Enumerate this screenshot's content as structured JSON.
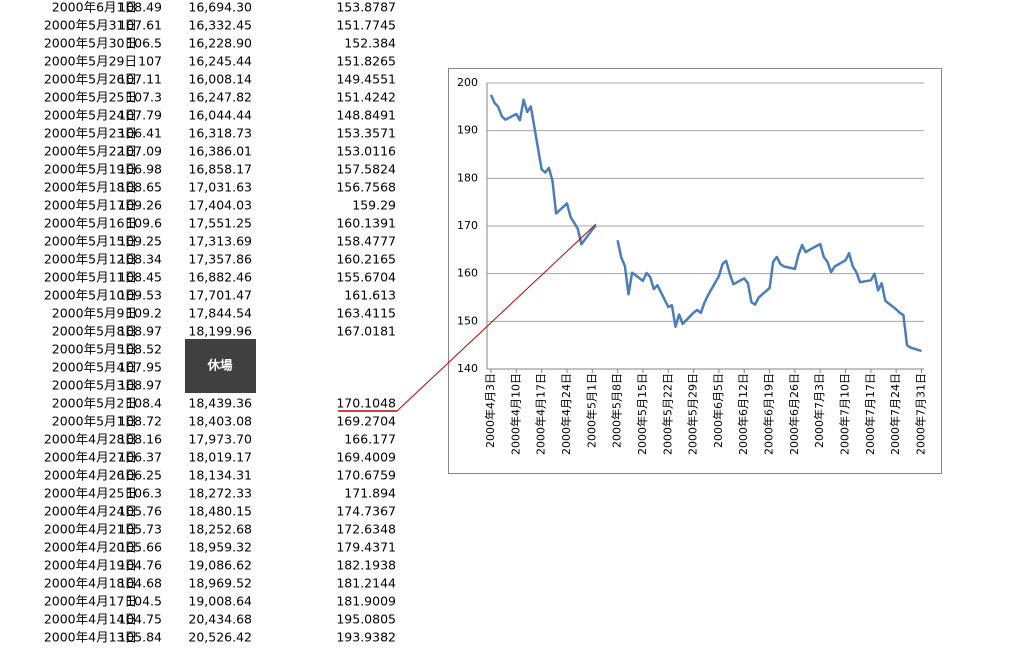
{
  "table": {
    "rows": [
      [
        "2000年6月1日",
        "108.49",
        "16,694.30",
        "153.8787"
      ],
      [
        "2000年5月31日",
        "107.61",
        "16,332.45",
        "151.7745"
      ],
      [
        "2000年5月30日",
        "106.5",
        "16,228.90",
        "152.384"
      ],
      [
        "2000年5月29日",
        "107",
        "16,245.44",
        "151.8265"
      ],
      [
        "2000年5月26日",
        "107.11",
        "16,008.14",
        "149.4551"
      ],
      [
        "2000年5月25日",
        "107.3",
        "16,247.82",
        "151.4242"
      ],
      [
        "2000年5月24日",
        "107.79",
        "16,044.44",
        "148.8491"
      ],
      [
        "2000年5月23日",
        "106.41",
        "16,318.73",
        "153.3571"
      ],
      [
        "2000年5月22日",
        "107.09",
        "16,386.01",
        "153.0116"
      ],
      [
        "2000年5月19日",
        "106.98",
        "16,858.17",
        "157.5824"
      ],
      [
        "2000年5月18日",
        "108.65",
        "17,031.63",
        "156.7568"
      ],
      [
        "2000年5月17日",
        "109.26",
        "17,404.03",
        "159.29"
      ],
      [
        "2000年5月16日",
        "109.6",
        "17,551.25",
        "160.1391"
      ],
      [
        "2000年5月15日",
        "109.25",
        "17,313.69",
        "158.4777"
      ],
      [
        "2000年5月12日",
        "108.34",
        "17,357.86",
        "160.2165"
      ],
      [
        "2000年5月11日",
        "108.45",
        "16,882.46",
        "155.6704"
      ],
      [
        "2000年5月10日",
        "109.53",
        "17,701.47",
        "161.613"
      ],
      [
        "2000年5月9日",
        "109.2",
        "17,844.54",
        "163.4115"
      ],
      [
        "2000年5月8日",
        "108.97",
        "18,199.96",
        "167.0181"
      ],
      [
        "2000年5月5日",
        "108.52"
      ],
      [
        "2000年5月4日",
        "107.95"
      ],
      [
        "2000年5月3日",
        "108.97"
      ],
      [
        "2000年5月2日",
        "108.4",
        "18,439.36",
        "170.1048"
      ],
      [
        "2000年5月1日",
        "108.72",
        "18,403.08",
        "169.2704"
      ],
      [
        "2000年4月28日",
        "108.16",
        "17,973.70",
        "166.177"
      ],
      [
        "2000年4月27日",
        "106.37",
        "18,019.17",
        "169.4009"
      ],
      [
        "2000年4月26日",
        "106.25",
        "18,134.31",
        "170.6759"
      ],
      [
        "2000年4月25日",
        "106.3",
        "18,272.33",
        "171.894"
      ],
      [
        "2000年4月24日",
        "105.76",
        "18,480.15",
        "174.7367"
      ],
      [
        "2000年4月21日",
        "105.73",
        "18,252.68",
        "172.6348"
      ],
      [
        "2000年4月20日",
        "105.66",
        "18,959.32",
        "179.4371"
      ],
      [
        "2000年4月19日",
        "104.76",
        "19,086.62",
        "182.1938"
      ],
      [
        "2000年4月18日",
        "104.68",
        "18,969.52",
        "181.2144"
      ],
      [
        "2000年4月17日",
        "104.5",
        "19,008.64",
        "181.9009"
      ],
      [
        "2000年4月14日",
        "104.75",
        "20,434.68",
        "195.0805"
      ],
      [
        "2000年4月13日",
        "105.84",
        "20,526.42",
        "193.9382"
      ]
    ],
    "closed_label": "休場"
  },
  "chart_data": {
    "type": "line",
    "x": [
      "2000年4月3日",
      "2000年4月4日",
      "2000年4月5日",
      "2000年4月6日",
      "2000年4月7日",
      "2000年4月10日",
      "2000年4月11日",
      "2000年4月12日",
      "2000年4月13日",
      "2000年4月14日",
      "2000年4月17日",
      "2000年4月18日",
      "2000年4月19日",
      "2000年4月20日",
      "2000年4月21日",
      "2000年4月24日",
      "2000年4月25日",
      "2000年4月26日",
      "2000年4月27日",
      "2000年4月28日",
      "2000年5月1日",
      "2000年5月2日",
      "2000年5月3日",
      "2000年5月4日",
      "2000年5月5日",
      "2000年5月8日",
      "2000年5月9日",
      "2000年5月10日",
      "2000年5月11日",
      "2000年5月12日",
      "2000年5月15日",
      "2000年5月16日",
      "2000年5月17日",
      "2000年5月18日",
      "2000年5月19日",
      "2000年5月22日",
      "2000年5月23日",
      "2000年5月24日",
      "2000年5月25日",
      "2000年5月26日",
      "2000年5月29日",
      "2000年5月30日",
      "2000年5月31日",
      "2000年6月1日",
      "2000年6月2日",
      "2000年6月5日",
      "2000年6月6日",
      "2000年6月7日",
      "2000年6月8日",
      "2000年6月9日",
      "2000年6月12日",
      "2000年6月13日",
      "2000年6月14日",
      "2000年6月15日",
      "2000年6月16日",
      "2000年6月19日",
      "2000年6月20日",
      "2000年6月21日",
      "2000年6月22日",
      "2000年6月23日",
      "2000年6月26日",
      "2000年6月27日",
      "2000年6月28日",
      "2000年6月29日",
      "2000年6月30日",
      "2000年7月3日",
      "2000年7月4日",
      "2000年7月5日",
      "2000年7月6日",
      "2000年7月7日",
      "2000年7月10日",
      "2000年7月11日",
      "2000年7月12日",
      "2000年7月13日",
      "2000年7月14日",
      "2000年7月17日",
      "2000年7月18日",
      "2000年7月19日",
      "2000年7月20日",
      "2000年7月21日",
      "2000年7月24日",
      "2000年7月25日",
      "2000年7月26日",
      "2000年7月27日",
      "2000年7月28日",
      "2000年7月31日"
    ],
    "series": [
      {
        "color": "#4a7ebb",
        "values": [
          197.5,
          195.8,
          195.0,
          193.0,
          192.3,
          193.5,
          192.2,
          196.5,
          193.9382,
          195.0805,
          181.9009,
          181.2144,
          182.1938,
          179.4371,
          172.6348,
          174.7367,
          171.894,
          170.6759,
          169.4009,
          166.177,
          169.2704,
          170.1048,
          null,
          null,
          null,
          167.0181,
          163.4115,
          161.613,
          155.6704,
          160.2165,
          158.4777,
          160.1391,
          159.29,
          156.7568,
          157.5824,
          153.0116,
          153.3571,
          148.8491,
          151.4242,
          149.4551,
          151.8265,
          152.384,
          151.7745,
          153.8787,
          155.5,
          159.5,
          162,
          162.7,
          160,
          157.8,
          159,
          158,
          154,
          153.5,
          155,
          157,
          162.5,
          163.5,
          162,
          161.5,
          161,
          164,
          166,
          164.5,
          165,
          166.2,
          163.5,
          162.5,
          160.3,
          161.5,
          162.8,
          164.3,
          161.5,
          160.3,
          158.2,
          158.6,
          160,
          156.5,
          158,
          154.3,
          152.5,
          151.8,
          151.3,
          145,
          144.5,
          143.8
        ]
      }
    ],
    "ylim": [
      140,
      200
    ],
    "yticks": [
      140,
      150,
      160,
      170,
      180,
      190,
      200
    ],
    "xlim": [
      "2000年4月3日",
      "2000年7月31日"
    ],
    "xticks": [
      "2000年4月3日",
      "2000年4月10日",
      "2000年4月17日",
      "2000年4月24日",
      "2000年5月1日",
      "2000年5月8日",
      "2000年5月15日",
      "2000年5月22日",
      "2000年5月29日",
      "2000年6月5日",
      "2000年6月12日",
      "2000年6月19日",
      "2000年6月26日",
      "2000年7月3日",
      "2000年7月10日",
      "2000年7月17日",
      "2000年7月24日",
      "2000年7月31日"
    ],
    "grid": true
  }
}
